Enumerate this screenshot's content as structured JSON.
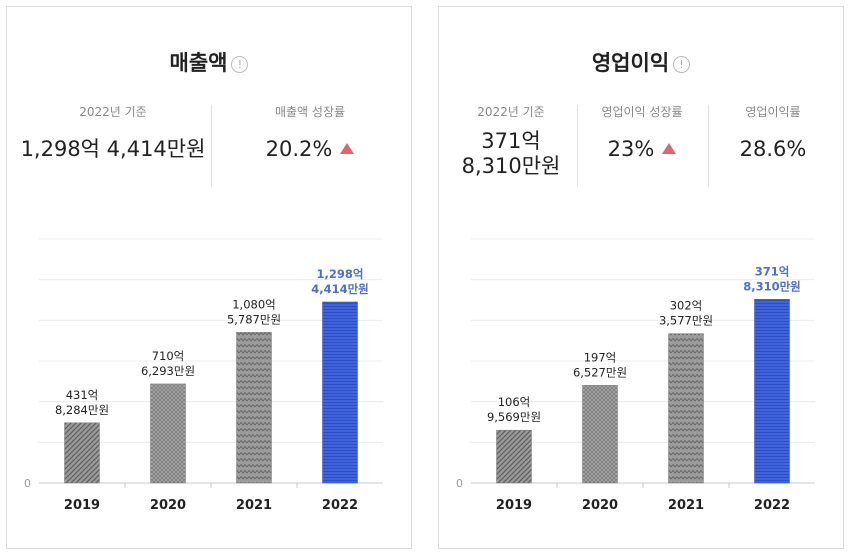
{
  "colors": {
    "accent": "#3a5ed8",
    "accent_label": "#4a6fcf",
    "bar_gray": "#8f8f8f",
    "up": "#e5636a"
  },
  "left": {
    "title": "매출액",
    "info_icon": "!",
    "stat1": {
      "label": "2022년 기준",
      "value": "1,298억 4,414만원"
    },
    "stat2": {
      "label": "매출액 성장률",
      "value": "20.2%"
    }
  },
  "right": {
    "title": "영업이익",
    "info_icon": "!",
    "stat1": {
      "label": "2022년 기준",
      "value_line1": "371억",
      "value_line2": "8,310만원"
    },
    "stat2": {
      "label": "영업이익 성장률",
      "value": "23%"
    },
    "stat3": {
      "label": "영업이익률",
      "value": "28.6%"
    }
  },
  "chart_data": [
    {
      "type": "bar",
      "title": "매출액",
      "categories": [
        "2019",
        "2020",
        "2021",
        "2022"
      ],
      "values": [
        431.8284,
        710.6293,
        1080.5787,
        1298.4414
      ],
      "units": "억원",
      "data_labels": [
        [
          "431억",
          "8,284만원"
        ],
        [
          "710억",
          "6,293만원"
        ],
        [
          "1,080억",
          "5,787만원"
        ],
        [
          "1,298억",
          "4,414만원"
        ]
      ],
      "y_tick_labels": [
        "0"
      ],
      "ylim": [
        0,
        1750
      ],
      "highlight_index": 3,
      "grid": true
    },
    {
      "type": "bar",
      "title": "영업이익",
      "categories": [
        "2019",
        "2020",
        "2021",
        "2022"
      ],
      "values": [
        106.9569,
        197.6527,
        302.3577,
        371.831
      ],
      "units": "억원",
      "data_labels": [
        [
          "106억",
          "9,569만원"
        ],
        [
          "197억",
          "6,527만원"
        ],
        [
          "302억",
          "3,577만원"
        ],
        [
          "371억",
          "8,310만원"
        ]
      ],
      "y_tick_labels": [
        "0"
      ],
      "ylim": [
        0,
        494
      ],
      "highlight_index": 3,
      "grid": true
    }
  ]
}
